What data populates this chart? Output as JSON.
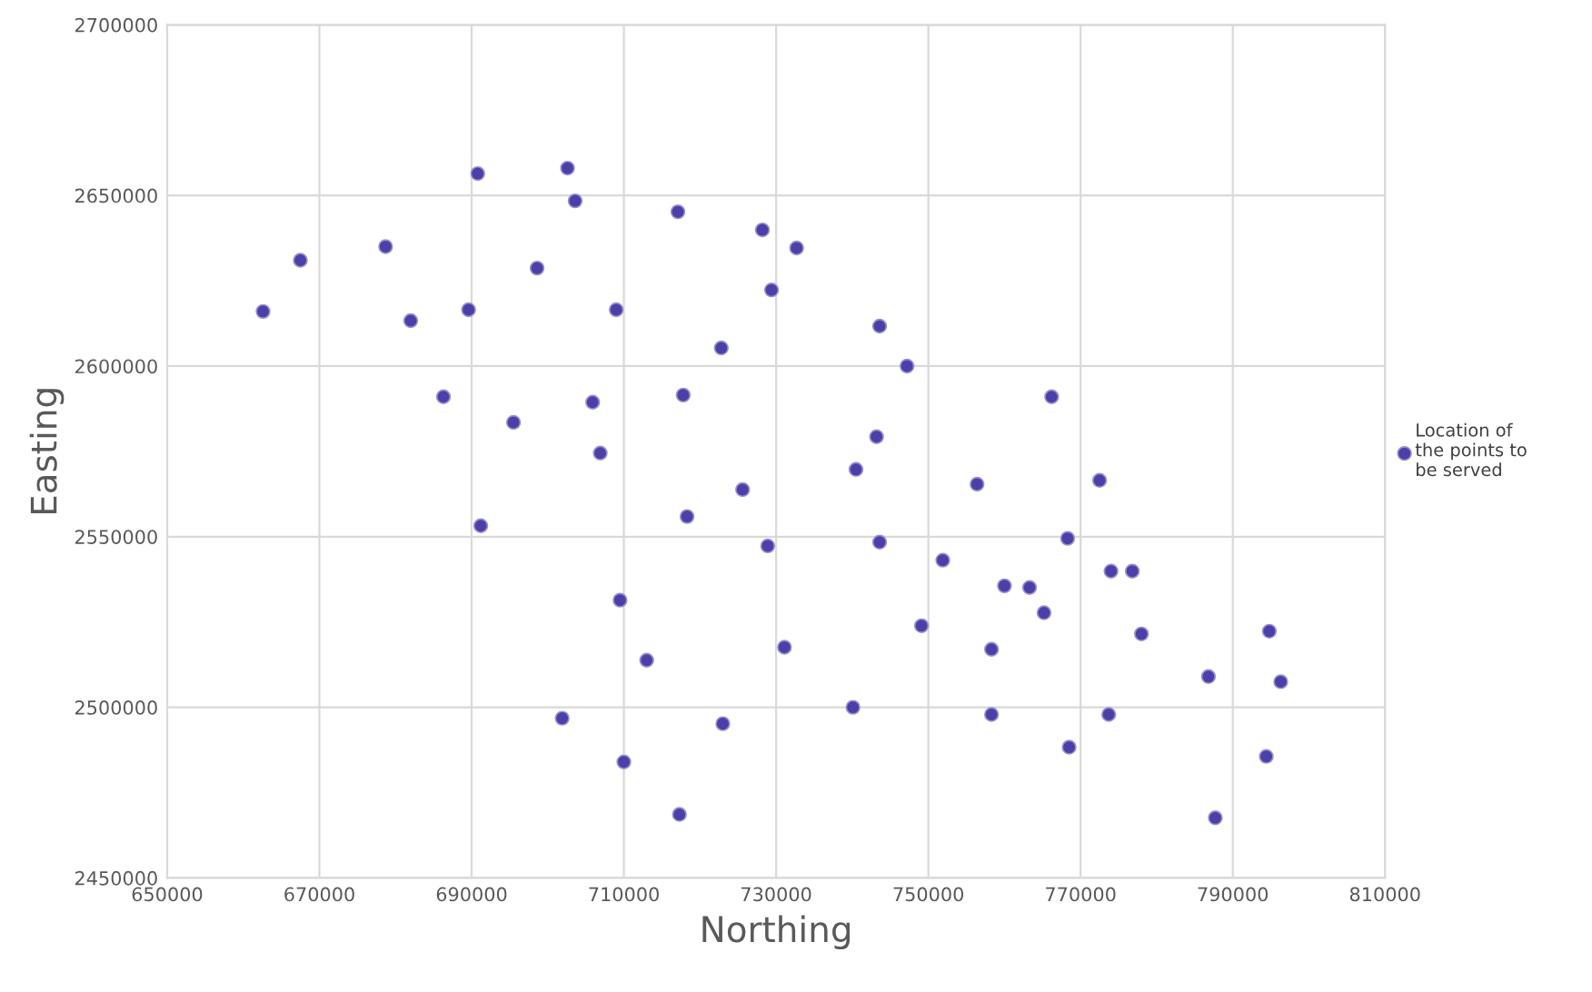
{
  "chart_data": {
    "type": "scatter",
    "xlabel": "Northing",
    "ylabel": "Easting",
    "xlim": [
      650000,
      810000
    ],
    "xticks": [
      650000,
      670000,
      690000,
      710000,
      730000,
      750000,
      770000,
      790000,
      810000
    ],
    "ylim": [
      2450000,
      2700000
    ],
    "yticks": [
      2450000,
      2500000,
      2550000,
      2600000,
      2650000,
      2700000
    ],
    "grid": true,
    "legend": "right",
    "marker": "circle",
    "series": [
      {
        "name": "Location of the points to be served",
        "color": "#4b40a8",
        "x": [
          662600,
          667500,
          678700,
          682000,
          686300,
          689600,
          690800,
          691200,
          695500,
          698600,
          701900,
          702600,
          703600,
          705900,
          706900,
          709000,
          709500,
          710000,
          713000,
          717100,
          717300,
          717800,
          718300,
          722800,
          723000,
          725600,
          728200,
          728900,
          729400,
          731100,
          732700,
          740100,
          740500,
          743200,
          743600,
          743600,
          747200,
          749100,
          751900,
          756400,
          758300,
          758300,
          760000,
          763300,
          765200,
          766200,
          768300,
          768500,
          772500,
          774000,
          773700,
          776800,
          778000,
          786800,
          787700,
          794400,
          794800,
          796300
        ],
        "values": [
          2616000,
          2631000,
          2635000,
          2613300,
          2591000,
          2616500,
          2656400,
          2553200,
          2583500,
          2628700,
          2496800,
          2658000,
          2648400,
          2589400,
          2574500,
          2616500,
          2531400,
          2484000,
          2513800,
          2645200,
          2468600,
          2591500,
          2555900,
          2605300,
          2495200,
          2563800,
          2639900,
          2547300,
          2622300,
          2517600,
          2634600,
          2500000,
          2569700,
          2579300,
          2611700,
          2548400,
          2600000,
          2523900,
          2543100,
          2565400,
          2517000,
          2497900,
          2535600,
          2535100,
          2527700,
          2591000,
          2549500,
          2488300,
          2566500,
          2539900,
          2497900,
          2539900,
          2521500,
          2509000,
          2467600,
          2485600,
          2522300,
          2507500
        ]
      }
    ]
  }
}
